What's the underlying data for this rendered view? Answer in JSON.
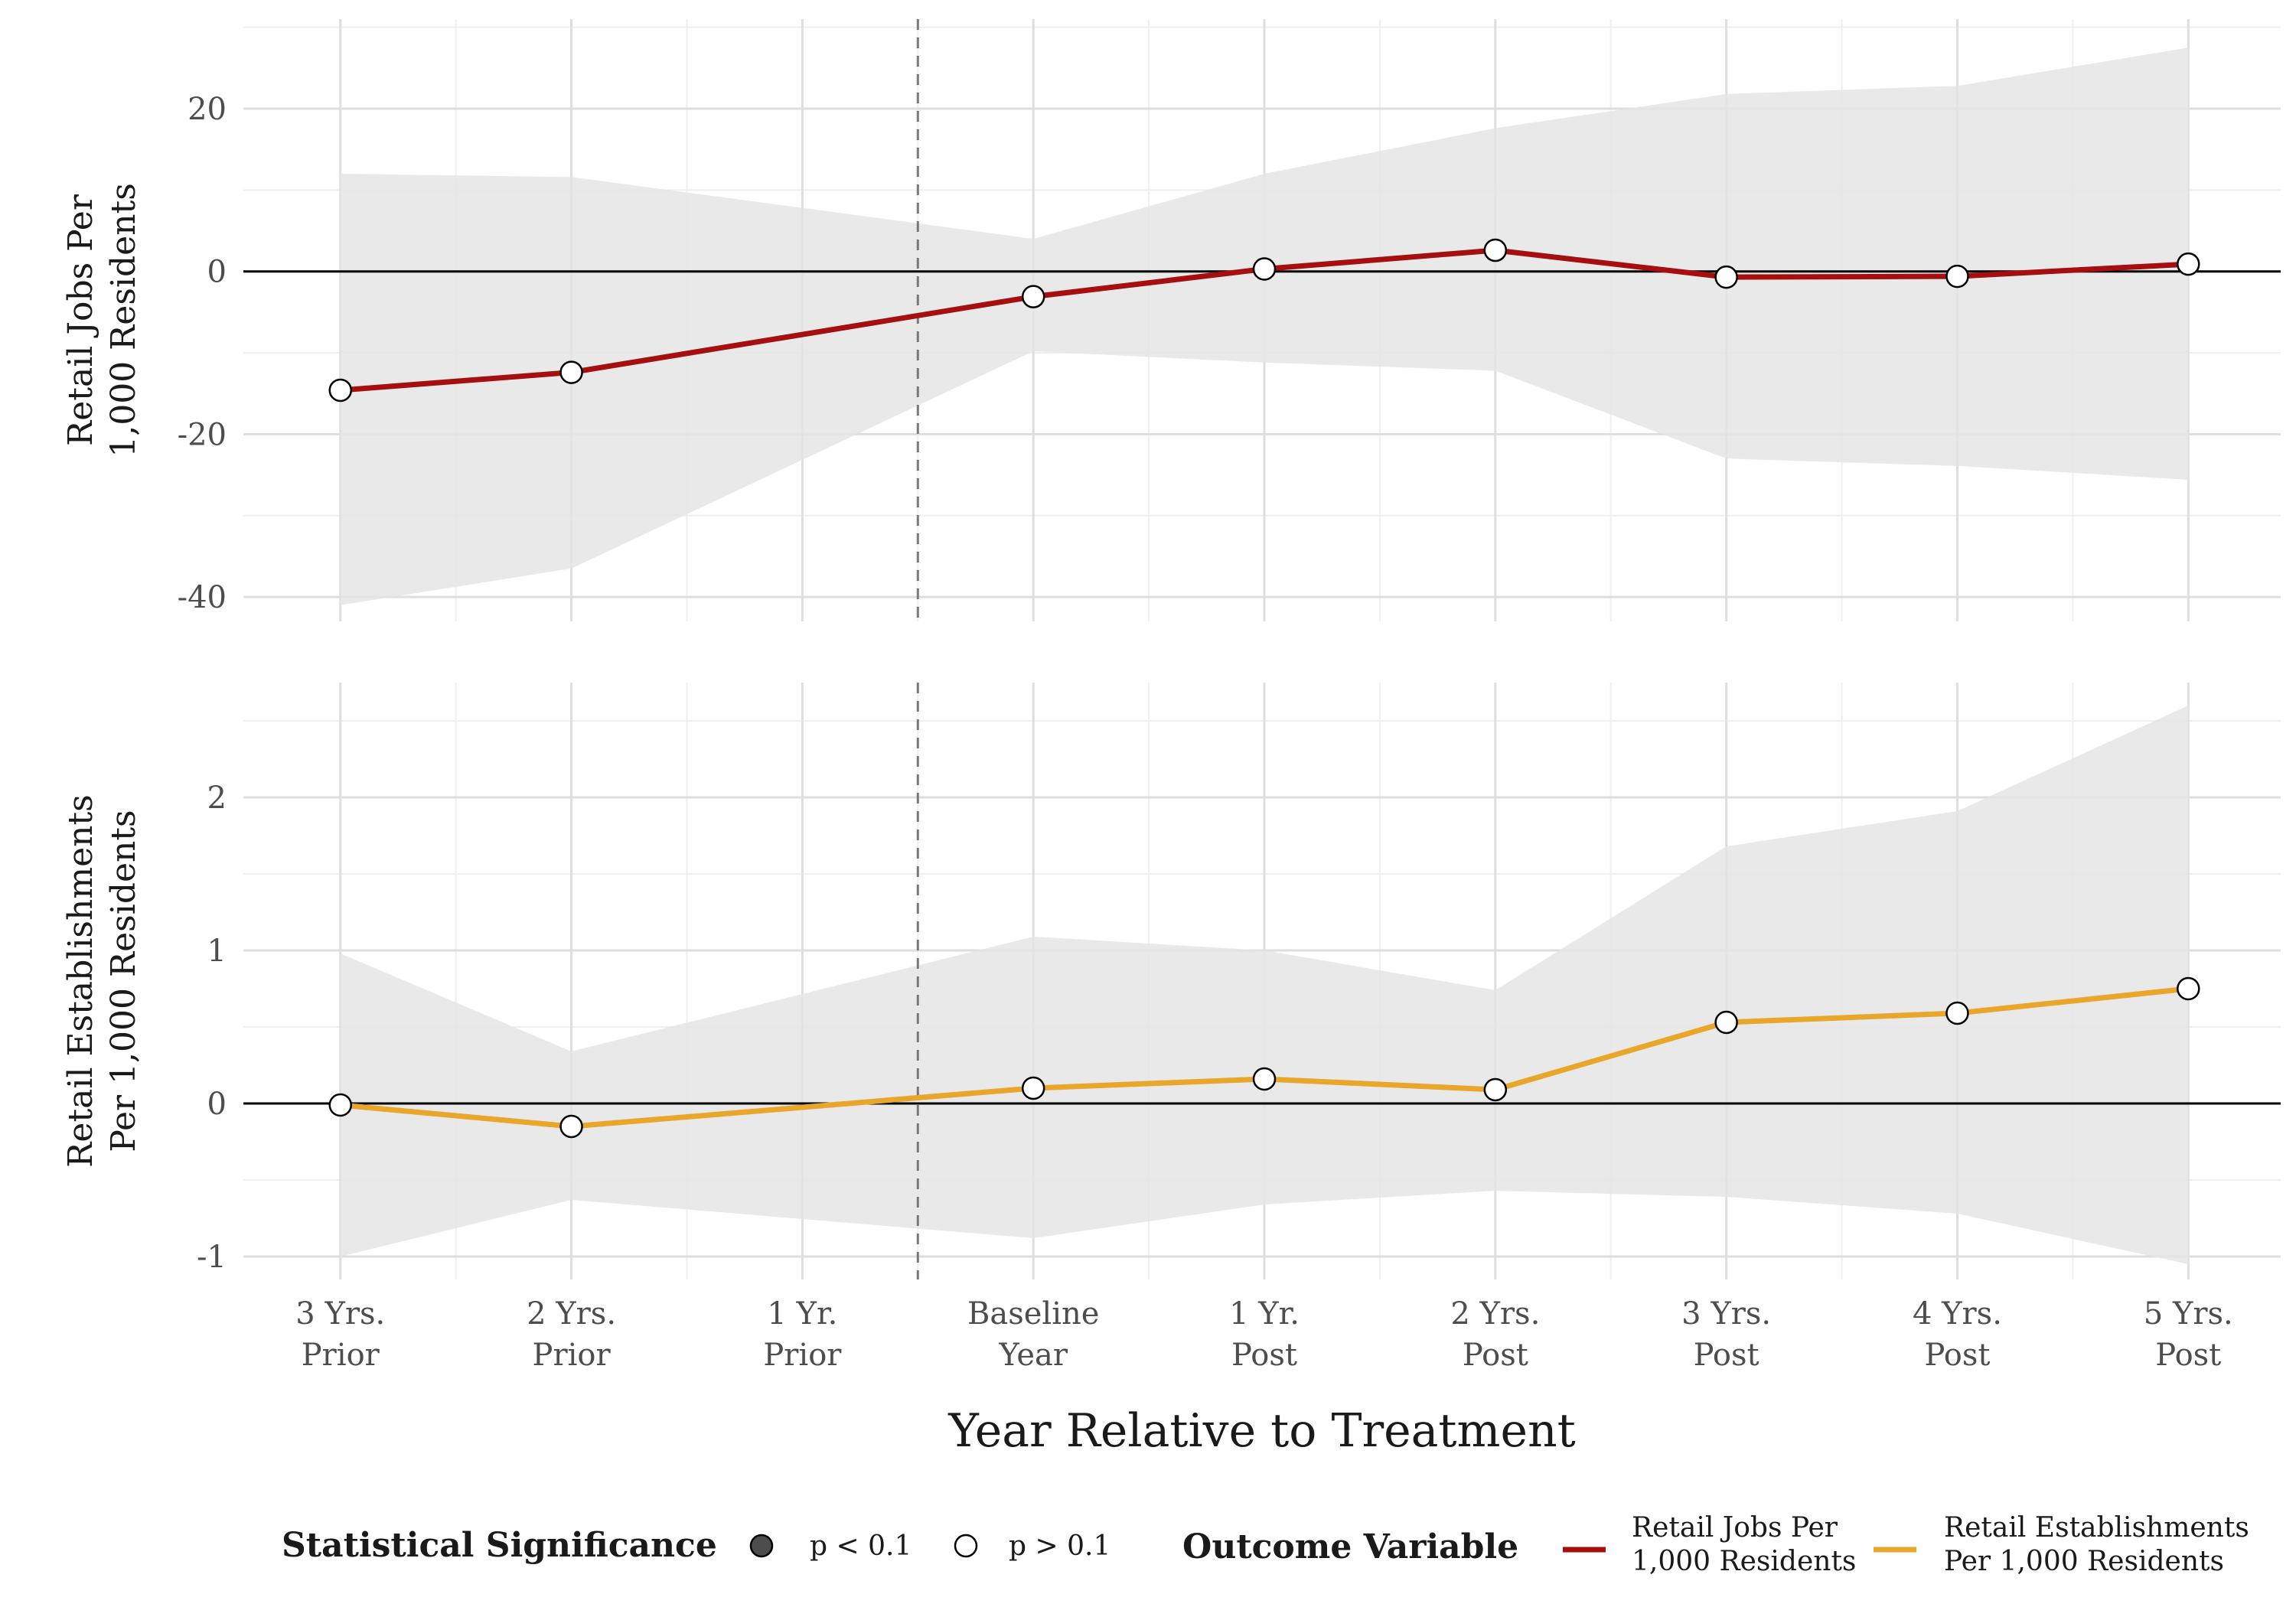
{
  "chart_data": [
    {
      "type": "line",
      "ylabel": [
        "Retail Jobs Per",
        "1,000 Residents"
      ],
      "categories": [
        "3 Yrs. Prior",
        "2 Yrs. Prior",
        "1 Yr. Prior",
        "Baseline Year",
        "1 Yr. Post",
        "2 Yrs. Post",
        "3 Yrs. Post",
        "4 Yrs. Post",
        "5 Yrs. Post"
      ],
      "series": [
        {
          "name": "Retail Jobs Per 1,000 Residents",
          "color": "#A50F0F",
          "x": [
            -3,
            -2,
            0,
            1,
            2,
            3,
            4,
            5
          ],
          "values": [
            -14.6,
            -12.4,
            -3.1,
            0.3,
            2.6,
            -0.7,
            -0.6,
            0.9
          ],
          "ci_lower": [
            -41.0,
            -36.5,
            -9.8,
            -11.2,
            -12.2,
            -23.0,
            -23.9,
            -25.6
          ],
          "ci_upper": [
            12.0,
            11.6,
            4.0,
            12.0,
            17.6,
            21.8,
            22.8,
            27.5
          ],
          "significance": [
            "p > 0.1",
            "p > 0.1",
            "p > 0.1",
            "p > 0.1",
            "p > 0.1",
            "p > 0.1",
            "p > 0.1",
            "p > 0.1"
          ]
        }
      ],
      "ylim": [
        -43,
        31
      ],
      "yticks": [
        -40,
        -20,
        0,
        20
      ],
      "ytick_labels": [
        "-40",
        "-20",
        "0",
        "20"
      ],
      "reference_line_y": 0,
      "treatment_line_x": -0.5
    },
    {
      "type": "line",
      "ylabel": [
        "Retail Establishments",
        "Per 1,000 Residents"
      ],
      "categories": [
        "3 Yrs. Prior",
        "2 Yrs. Prior",
        "1 Yr. Prior",
        "Baseline Year",
        "1 Yr. Post",
        "2 Yrs. Post",
        "3 Yrs. Post",
        "4 Yrs. Post",
        "5 Yrs. Post"
      ],
      "series": [
        {
          "name": "Retail Establishments Per 1,000 Residents",
          "color": "#E8A62A",
          "x": [
            -3,
            -2,
            0,
            1,
            2,
            3,
            4,
            5
          ],
          "values": [
            -0.01,
            -0.15,
            0.1,
            0.16,
            0.09,
            0.53,
            0.59,
            0.75
          ],
          "ci_lower": [
            -1.0,
            -0.63,
            -0.88,
            -0.66,
            -0.57,
            -0.61,
            -0.72,
            -1.05
          ],
          "ci_upper": [
            0.98,
            0.34,
            1.09,
            1.0,
            0.74,
            1.68,
            1.91,
            2.6
          ],
          "significance": [
            "p > 0.1",
            "p > 0.1",
            "p > 0.1",
            "p > 0.1",
            "p > 0.1",
            "p > 0.1",
            "p > 0.1",
            "p > 0.1"
          ]
        }
      ],
      "ylim": [
        -1.15,
        2.75
      ],
      "yticks": [
        -1,
        0,
        1,
        2
      ],
      "ytick_labels": [
        "-1",
        "0",
        "1",
        "2"
      ],
      "reference_line_y": 0,
      "treatment_line_x": -0.5
    }
  ],
  "x_axis": {
    "title": "Year Relative to Treatment",
    "values": [
      -3,
      -2,
      -1,
      0,
      1,
      2,
      3,
      4,
      5
    ],
    "tick_labels": [
      [
        "3 Yrs.",
        "Prior"
      ],
      [
        "2 Yrs.",
        "Prior"
      ],
      [
        "1 Yr.",
        "Prior"
      ],
      [
        "Baseline",
        "Year"
      ],
      [
        "1 Yr.",
        "Post"
      ],
      [
        "2 Yrs.",
        "Post"
      ],
      [
        "3 Yrs.",
        "Post"
      ],
      [
        "4 Yrs.",
        "Post"
      ],
      [
        "5 Yrs.",
        "Post"
      ]
    ]
  },
  "legend": {
    "placement": "bottom",
    "significance": {
      "title": "Statistical Significance",
      "items": [
        {
          "label": "p < 0.1",
          "fill": "#4d4d4d"
        },
        {
          "label": "p > 0.1",
          "fill": "#ffffff"
        }
      ]
    },
    "outcome": {
      "title": "Outcome Variable",
      "items": [
        {
          "label": [
            "Retail Jobs Per",
            "1,000 Residents"
          ],
          "color": "#A50F0F"
        },
        {
          "label": [
            "Retail Establishments",
            "Per 1,000 Residents"
          ],
          "color": "#E8A62A"
        }
      ]
    }
  },
  "colors": {
    "ribbon": "#e5e5e5",
    "grid_major": "#dedede",
    "grid_minor": "#efefef",
    "zero_line": "#000000",
    "treatment_line": "#7a7a7a"
  }
}
